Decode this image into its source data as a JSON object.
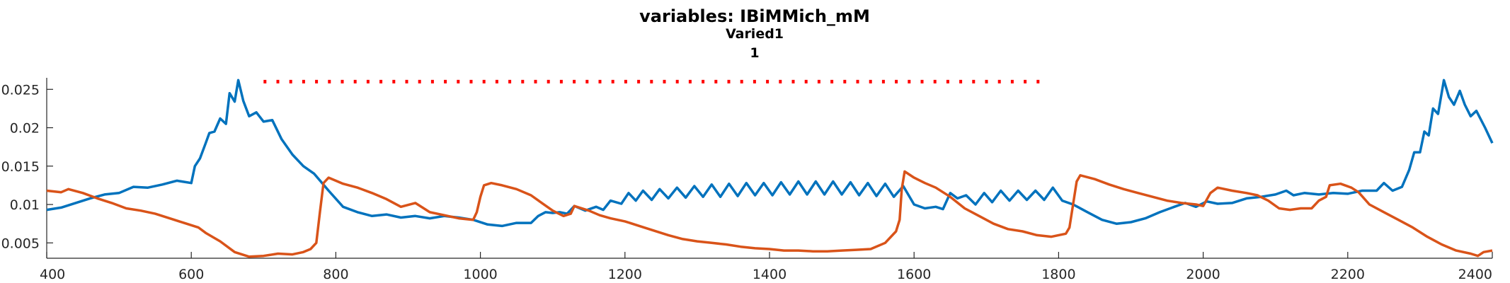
{
  "chart_data": {
    "type": "line",
    "title": "variables: IBiMMich_mM",
    "subtitle": "Varied1",
    "subtitle2": "1",
    "xlabel": "",
    "ylabel": "",
    "xlim": [
      400,
      2400
    ],
    "ylim": [
      0.003,
      0.0265
    ],
    "xticks": [
      400,
      600,
      800,
      1000,
      1200,
      1400,
      1600,
      1800,
      2000,
      2200,
      2400
    ],
    "yticks": [
      0.005,
      0.01,
      0.015,
      0.02,
      0.025
    ],
    "ytick_labels": [
      "0.005",
      "0.01",
      "0.015",
      "0.02",
      "0.025"
    ],
    "grid": false,
    "colors": {
      "blue": "#0072BD",
      "orange": "#D95319",
      "red": "#FF0000",
      "axis": "#262626"
    },
    "series": [
      {
        "color": "#0072BD",
        "points": [
          [
            400,
            0.0093
          ],
          [
            420,
            0.0096
          ],
          [
            440,
            0.0102
          ],
          [
            460,
            0.0108
          ],
          [
            480,
            0.0113
          ],
          [
            500,
            0.0115
          ],
          [
            520,
            0.0123
          ],
          [
            540,
            0.0122
          ],
          [
            560,
            0.0126
          ],
          [
            580,
            0.0131
          ],
          [
            600,
            0.0128
          ],
          [
            605,
            0.015
          ],
          [
            612,
            0.016
          ],
          [
            620,
            0.018
          ],
          [
            625,
            0.0193
          ],
          [
            632,
            0.0195
          ],
          [
            640,
            0.0212
          ],
          [
            648,
            0.0205
          ],
          [
            653,
            0.0245
          ],
          [
            660,
            0.0234
          ],
          [
            665,
            0.0262
          ],
          [
            672,
            0.0235
          ],
          [
            680,
            0.0215
          ],
          [
            690,
            0.022
          ],
          [
            700,
            0.0208
          ],
          [
            712,
            0.021
          ],
          [
            725,
            0.0185
          ],
          [
            740,
            0.0165
          ],
          [
            755,
            0.015
          ],
          [
            770,
            0.014
          ],
          [
            790,
            0.0118
          ],
          [
            810,
            0.0097
          ],
          [
            830,
            0.009
          ],
          [
            850,
            0.0085
          ],
          [
            870,
            0.0087
          ],
          [
            890,
            0.0083
          ],
          [
            910,
            0.0085
          ],
          [
            930,
            0.0082
          ],
          [
            950,
            0.0085
          ],
          [
            970,
            0.0083
          ],
          [
            990,
            0.008
          ],
          [
            1010,
            0.0074
          ],
          [
            1030,
            0.0072
          ],
          [
            1050,
            0.0076
          ],
          [
            1070,
            0.0076
          ],
          [
            1080,
            0.0085
          ],
          [
            1090,
            0.009
          ],
          [
            1100,
            0.0089
          ],
          [
            1110,
            0.009
          ],
          [
            1120,
            0.0088
          ],
          [
            1130,
            0.0098
          ],
          [
            1145,
            0.0092
          ],
          [
            1160,
            0.0097
          ],
          [
            1170,
            0.0093
          ],
          [
            1180,
            0.0105
          ],
          [
            1195,
            0.0101
          ],
          [
            1205,
            0.0115
          ],
          [
            1215,
            0.0105
          ],
          [
            1225,
            0.0118
          ],
          [
            1237,
            0.0106
          ],
          [
            1248,
            0.012
          ],
          [
            1260,
            0.0108
          ],
          [
            1272,
            0.0122
          ],
          [
            1284,
            0.0109
          ],
          [
            1296,
            0.0124
          ],
          [
            1308,
            0.011
          ],
          [
            1320,
            0.0126
          ],
          [
            1332,
            0.011
          ],
          [
            1344,
            0.0127
          ],
          [
            1356,
            0.0111
          ],
          [
            1368,
            0.0128
          ],
          [
            1380,
            0.0112
          ],
          [
            1392,
            0.0128
          ],
          [
            1404,
            0.0112
          ],
          [
            1416,
            0.0129
          ],
          [
            1428,
            0.0113
          ],
          [
            1440,
            0.013
          ],
          [
            1452,
            0.0113
          ],
          [
            1464,
            0.013
          ],
          [
            1476,
            0.0113
          ],
          [
            1488,
            0.013
          ],
          [
            1500,
            0.0113
          ],
          [
            1512,
            0.0129
          ],
          [
            1524,
            0.0112
          ],
          [
            1536,
            0.0128
          ],
          [
            1548,
            0.0111
          ],
          [
            1560,
            0.0127
          ],
          [
            1572,
            0.011
          ],
          [
            1585,
            0.0124
          ],
          [
            1600,
            0.01
          ],
          [
            1615,
            0.0095
          ],
          [
            1630,
            0.0097
          ],
          [
            1640,
            0.0094
          ],
          [
            1650,
            0.0115
          ],
          [
            1660,
            0.0108
          ],
          [
            1672,
            0.0112
          ],
          [
            1685,
            0.01
          ],
          [
            1697,
            0.0115
          ],
          [
            1708,
            0.0103
          ],
          [
            1720,
            0.0118
          ],
          [
            1732,
            0.0105
          ],
          [
            1744,
            0.0118
          ],
          [
            1756,
            0.0106
          ],
          [
            1768,
            0.0118
          ],
          [
            1780,
            0.0106
          ],
          [
            1792,
            0.0122
          ],
          [
            1805,
            0.0105
          ],
          [
            1820,
            0.01
          ],
          [
            1840,
            0.009
          ],
          [
            1860,
            0.008
          ],
          [
            1880,
            0.0075
          ],
          [
            1900,
            0.0077
          ],
          [
            1920,
            0.0082
          ],
          [
            1940,
            0.009
          ],
          [
            1960,
            0.0097
          ],
          [
            1975,
            0.0102
          ],
          [
            1990,
            0.0097
          ],
          [
            2005,
            0.0104
          ],
          [
            2020,
            0.0101
          ],
          [
            2040,
            0.0102
          ],
          [
            2060,
            0.0108
          ],
          [
            2080,
            0.011
          ],
          [
            2100,
            0.0113
          ],
          [
            2115,
            0.0118
          ],
          [
            2125,
            0.0112
          ],
          [
            2140,
            0.0115
          ],
          [
            2160,
            0.0113
          ],
          [
            2180,
            0.0115
          ],
          [
            2200,
            0.0114
          ],
          [
            2220,
            0.0118
          ],
          [
            2240,
            0.0118
          ],
          [
            2250,
            0.0128
          ],
          [
            2262,
            0.0118
          ],
          [
            2275,
            0.0123
          ],
          [
            2285,
            0.0145
          ],
          [
            2292,
            0.0168
          ],
          [
            2300,
            0.0168
          ],
          [
            2306,
            0.0195
          ],
          [
            2312,
            0.019
          ],
          [
            2318,
            0.0225
          ],
          [
            2325,
            0.0218
          ],
          [
            2333,
            0.0262
          ],
          [
            2340,
            0.024
          ],
          [
            2347,
            0.023
          ],
          [
            2355,
            0.0248
          ],
          [
            2362,
            0.023
          ],
          [
            2370,
            0.0215
          ],
          [
            2378,
            0.0222
          ],
          [
            2390,
            0.02
          ],
          [
            2400,
            0.018
          ]
        ]
      },
      {
        "color": "#D95319",
        "points": [
          [
            400,
            0.0118
          ],
          [
            420,
            0.0116
          ],
          [
            430,
            0.012
          ],
          [
            450,
            0.0115
          ],
          [
            470,
            0.0108
          ],
          [
            490,
            0.0102
          ],
          [
            510,
            0.0095
          ],
          [
            530,
            0.0092
          ],
          [
            550,
            0.0088
          ],
          [
            570,
            0.0082
          ],
          [
            590,
            0.0076
          ],
          [
            610,
            0.007
          ],
          [
            620,
            0.0063
          ],
          [
            640,
            0.0052
          ],
          [
            660,
            0.0038
          ],
          [
            680,
            0.0032
          ],
          [
            700,
            0.0033
          ],
          [
            720,
            0.0036
          ],
          [
            740,
            0.0035
          ],
          [
            755,
            0.0038
          ],
          [
            765,
            0.0042
          ],
          [
            773,
            0.005
          ],
          [
            778,
            0.009
          ],
          [
            783,
            0.0128
          ],
          [
            790,
            0.0135
          ],
          [
            810,
            0.0127
          ],
          [
            830,
            0.0122
          ],
          [
            850,
            0.0115
          ],
          [
            870,
            0.0107
          ],
          [
            890,
            0.0097
          ],
          [
            910,
            0.0102
          ],
          [
            930,
            0.009
          ],
          [
            950,
            0.0086
          ],
          [
            970,
            0.0082
          ],
          [
            990,
            0.008
          ],
          [
            995,
            0.009
          ],
          [
            1000,
            0.011
          ],
          [
            1005,
            0.0125
          ],
          [
            1015,
            0.0128
          ],
          [
            1030,
            0.0125
          ],
          [
            1050,
            0.012
          ],
          [
            1070,
            0.0112
          ],
          [
            1085,
            0.0102
          ],
          [
            1100,
            0.0092
          ],
          [
            1115,
            0.0085
          ],
          [
            1125,
            0.0088
          ],
          [
            1130,
            0.0098
          ],
          [
            1150,
            0.0092
          ],
          [
            1165,
            0.0086
          ],
          [
            1180,
            0.0082
          ],
          [
            1200,
            0.0078
          ],
          [
            1220,
            0.0072
          ],
          [
            1240,
            0.0066
          ],
          [
            1260,
            0.006
          ],
          [
            1280,
            0.0055
          ],
          [
            1300,
            0.0052
          ],
          [
            1320,
            0.005
          ],
          [
            1340,
            0.0048
          ],
          [
            1360,
            0.0045
          ],
          [
            1380,
            0.0043
          ],
          [
            1400,
            0.0042
          ],
          [
            1420,
            0.004
          ],
          [
            1440,
            0.004
          ],
          [
            1460,
            0.0039
          ],
          [
            1480,
            0.0039
          ],
          [
            1500,
            0.004
          ],
          [
            1520,
            0.0041
          ],
          [
            1540,
            0.0042
          ],
          [
            1560,
            0.005
          ],
          [
            1575,
            0.0065
          ],
          [
            1580,
            0.008
          ],
          [
            1583,
            0.012
          ],
          [
            1587,
            0.0143
          ],
          [
            1600,
            0.0135
          ],
          [
            1615,
            0.0128
          ],
          [
            1630,
            0.0122
          ],
          [
            1650,
            0.011
          ],
          [
            1670,
            0.0095
          ],
          [
            1690,
            0.0085
          ],
          [
            1710,
            0.0075
          ],
          [
            1730,
            0.0068
          ],
          [
            1750,
            0.0065
          ],
          [
            1770,
            0.006
          ],
          [
            1790,
            0.0058
          ],
          [
            1810,
            0.0062
          ],
          [
            1815,
            0.007
          ],
          [
            1820,
            0.01
          ],
          [
            1825,
            0.013
          ],
          [
            1830,
            0.0138
          ],
          [
            1850,
            0.0133
          ],
          [
            1870,
            0.0126
          ],
          [
            1890,
            0.012
          ],
          [
            1910,
            0.0115
          ],
          [
            1930,
            0.011
          ],
          [
            1950,
            0.0105
          ],
          [
            1970,
            0.0102
          ],
          [
            1990,
            0.01
          ],
          [
            2000,
            0.0098
          ],
          [
            2010,
            0.0115
          ],
          [
            2020,
            0.0122
          ],
          [
            2040,
            0.0118
          ],
          [
            2060,
            0.0115
          ],
          [
            2075,
            0.0112
          ],
          [
            2090,
            0.0105
          ],
          [
            2105,
            0.0095
          ],
          [
            2120,
            0.0093
          ],
          [
            2135,
            0.0095
          ],
          [
            2150,
            0.0095
          ],
          [
            2160,
            0.0105
          ],
          [
            2170,
            0.011
          ],
          [
            2175,
            0.0125
          ],
          [
            2190,
            0.0127
          ],
          [
            2205,
            0.0122
          ],
          [
            2215,
            0.0116
          ],
          [
            2230,
            0.01
          ],
          [
            2250,
            0.009
          ],
          [
            2270,
            0.008
          ],
          [
            2290,
            0.007
          ],
          [
            2310,
            0.0058
          ],
          [
            2330,
            0.0048
          ],
          [
            2350,
            0.004
          ],
          [
            2370,
            0.0036
          ],
          [
            2380,
            0.0033
          ],
          [
            2388,
            0.0038
          ],
          [
            2400,
            0.004
          ]
        ]
      },
      {
        "color": "#FF0000",
        "style": "dotted",
        "points": [
          [
            700,
            0.026
          ],
          [
            1785,
            0.026
          ]
        ]
      }
    ]
  }
}
